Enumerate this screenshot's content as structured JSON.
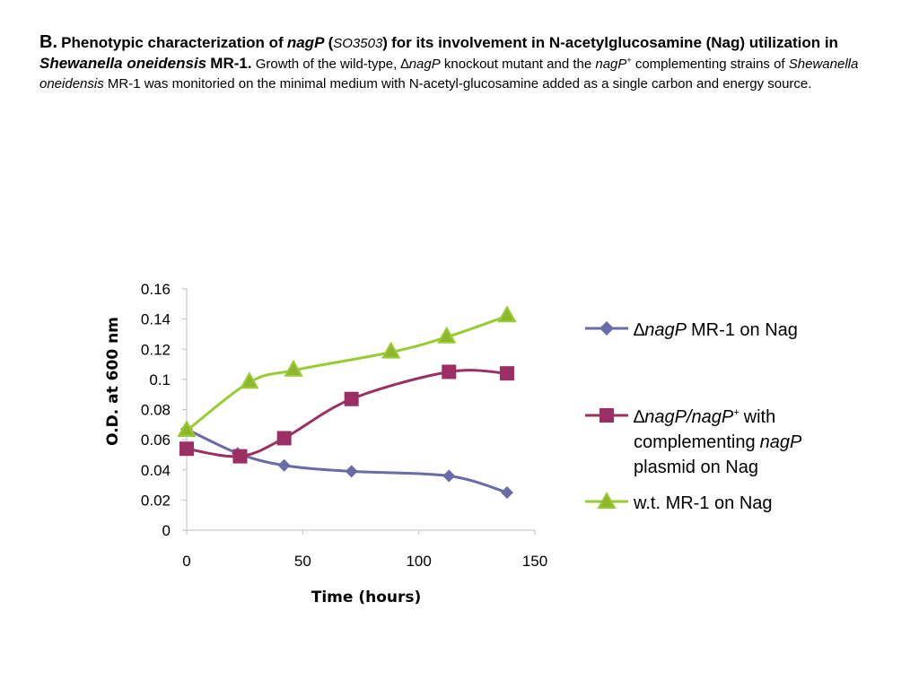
{
  "caption": {
    "letter": "B.",
    "title_1": "Phenotypic characterization of",
    "title_gene": "nagP",
    "title_open": "(",
    "title_locus": "SO3503",
    "title_close": ")",
    "title_2": "for its involvement in N-acetylglucosamine (Nag) utilization in",
    "title_species": "Shewanella oneidensis",
    "title_strain": "MR-1.",
    "body_1": "Growth of the wild-type,",
    "body_delta": "∆",
    "body_gene": "nagP",
    "body_2": "knockout mutant and the",
    "body_gene2": "nagP",
    "body_plus": "+",
    "body_3": "complementing strains of",
    "body_species": "Shewanella oneidensis",
    "body_4": "MR-1 was monitoried on the minimal medium with N-acetyl-glucosamine added as a single carbon and energy source."
  },
  "legend": {
    "s1_delta": "∆",
    "s1_gene": "nagP",
    "s1_rest": "MR-1 on Nag",
    "s2_delta": "∆",
    "s2_gene": "nagP/nagP",
    "s2_plus": "+",
    "s2_with": "with",
    "s2_line2a": "complementing",
    "s2_line2b": "nagP",
    "s2_line3": "plasmid on Nag",
    "s3": "w.t. MR-1 on Nag"
  },
  "chart_data": {
    "type": "line",
    "title": "",
    "xlabel": "Time (hours)",
    "ylabel": "O.D. at 600 nm",
    "xlim": [
      0,
      150
    ],
    "ylim": [
      0,
      0.16
    ],
    "xticks": [
      0,
      50,
      100,
      150
    ],
    "yticks": [
      0,
      0.02,
      0.04,
      0.06,
      0.08,
      0.1,
      0.12,
      0.14,
      0.16
    ],
    "ytick_labels": [
      "0",
      "0.02",
      "0.04",
      "0.06",
      "0.08",
      "0.1",
      "0.12",
      "0.14",
      "0.16"
    ],
    "legend_position": "right",
    "grid": false,
    "series": [
      {
        "name": "∆nagP MR-1 on Nag",
        "color": "#6b6ba8",
        "marker": "diamond",
        "points": [
          [
            0,
            0.067
          ],
          [
            22,
            0.051
          ],
          [
            42,
            0.043
          ],
          [
            71,
            0.039
          ],
          [
            113,
            0.036
          ],
          [
            138,
            0.025
          ]
        ]
      },
      {
        "name": "∆nagP/nagP+ with complementing nagP plasmid on Nag",
        "color": "#9b2f64",
        "marker": "square",
        "points": [
          [
            0,
            0.054
          ],
          [
            23,
            0.049
          ],
          [
            42,
            0.061
          ],
          [
            71,
            0.087
          ],
          [
            113,
            0.105
          ],
          [
            138,
            0.104
          ]
        ]
      },
      {
        "name": "w.t. MR-1 on Nag",
        "color": "#99cc33",
        "marker": "triangle",
        "points": [
          [
            0,
            0.066
          ],
          [
            27,
            0.098
          ],
          [
            46,
            0.106
          ],
          [
            88,
            0.118
          ],
          [
            112,
            0.128
          ],
          [
            138,
            0.142
          ]
        ]
      }
    ]
  }
}
